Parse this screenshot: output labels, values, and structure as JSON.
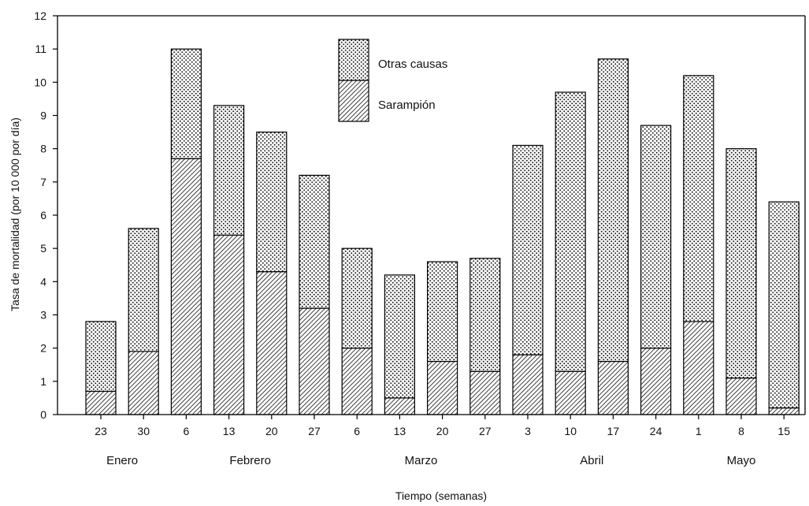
{
  "chart_data": {
    "type": "bar",
    "stacked": true,
    "ylabel": "Tasa de mortalidad (por 10 000 por día)",
    "xlabel": "Tiempo (semanas)",
    "ylim": [
      0,
      12
    ],
    "yticks": [
      "0",
      "1",
      "2",
      "3",
      "4",
      "5",
      "6",
      "7",
      "8",
      "9",
      "10",
      "11",
      "12"
    ],
    "categories": [
      "23",
      "30",
      "6",
      "13",
      "20",
      "27",
      "6",
      "13",
      "20",
      "27",
      "3",
      "10",
      "17",
      "24",
      "1",
      "8",
      "15"
    ],
    "months": [
      {
        "label": "Enero",
        "from": 0,
        "to": 1
      },
      {
        "label": "Febrero",
        "from": 2,
        "to": 5
      },
      {
        "label": "Marzo",
        "from": 6,
        "to": 9
      },
      {
        "label": "Abril",
        "from": 10,
        "to": 13
      },
      {
        "label": "Mayo",
        "from": 14,
        "to": 16
      }
    ],
    "series": [
      {
        "name": "Sarampión",
        "pattern": "hatch",
        "values": [
          0.7,
          1.9,
          7.7,
          5.4,
          4.3,
          3.2,
          2.0,
          0.5,
          1.6,
          1.3,
          1.8,
          1.3,
          1.6,
          2.0,
          2.8,
          1.1,
          0.2
        ]
      },
      {
        "name": "Otras causas",
        "pattern": "dots",
        "values": [
          2.1,
          3.7,
          3.3,
          3.9,
          4.2,
          4.0,
          3.0,
          3.7,
          3.0,
          3.4,
          6.3,
          8.4,
          9.1,
          6.7,
          7.4,
          6.9,
          6.2
        ]
      }
    ],
    "totals": [
      2.8,
      5.6,
      11.0,
      9.3,
      8.5,
      7.2,
      5.0,
      4.2,
      4.6,
      4.7,
      8.1,
      9.7,
      10.7,
      8.7,
      10.2,
      8.0,
      6.4
    ],
    "legend_position": "top-center",
    "grid": false
  }
}
